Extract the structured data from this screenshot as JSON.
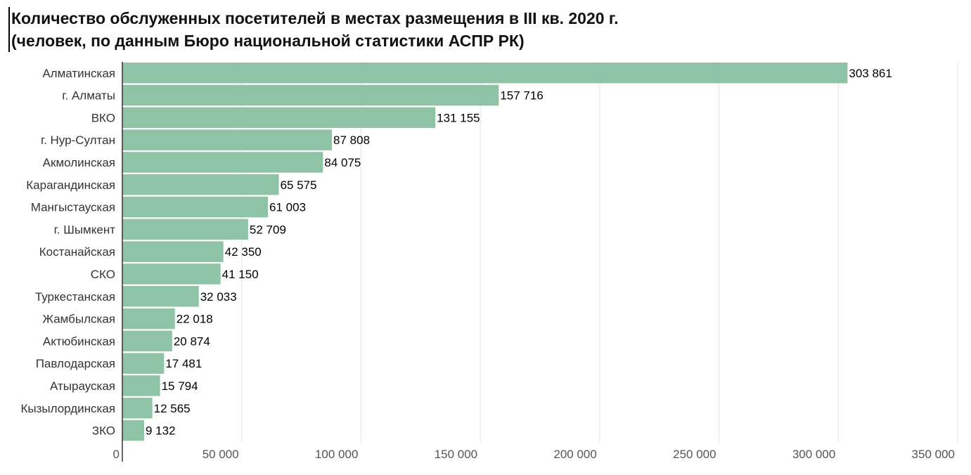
{
  "chart_data": {
    "type": "bar",
    "orientation": "horizontal",
    "title": "Количество обслуженных посетителей в местах размещения в III кв. 2020 г.",
    "subtitle": "(человек, по данным Бюро национальной статистики АСПР РК)",
    "categories": [
      "Алматинская",
      "г. Алматы",
      "ВКО",
      "г. Нур-Султан",
      "Акмолинская",
      "Карагандинская",
      "Мангыстауская",
      "г. Шымкент",
      "Костанайская",
      "СКО",
      "Туркестанская",
      "Жамбылская",
      "Актюбинская",
      "Павлодарская",
      "Атырауская",
      "Кызылординская",
      "ЗКО"
    ],
    "values": [
      303861,
      157716,
      131155,
      87808,
      84075,
      65575,
      61003,
      52709,
      42350,
      41150,
      32033,
      22018,
      20874,
      17481,
      15794,
      12565,
      9132
    ],
    "value_labels": [
      "303 861",
      "157 716",
      "131 155",
      "87 808",
      "84 075",
      "65 575",
      "61 003",
      "52 709",
      "42 350",
      "41 150",
      "32 033",
      "22 018",
      "20 874",
      "17 481",
      "15 794",
      "12 565",
      "9 132"
    ],
    "xlim": [
      0,
      350000
    ],
    "x_ticks": [
      0,
      50000,
      100000,
      150000,
      200000,
      250000,
      300000,
      350000
    ],
    "x_tick_labels": [
      "0",
      "50 000",
      "100 000",
      "150 000",
      "200 000",
      "250 000",
      "300 000",
      "350 000"
    ],
    "grid": true,
    "bar_color": "#8fc3a6",
    "grid_color": "#e3e3e3"
  }
}
